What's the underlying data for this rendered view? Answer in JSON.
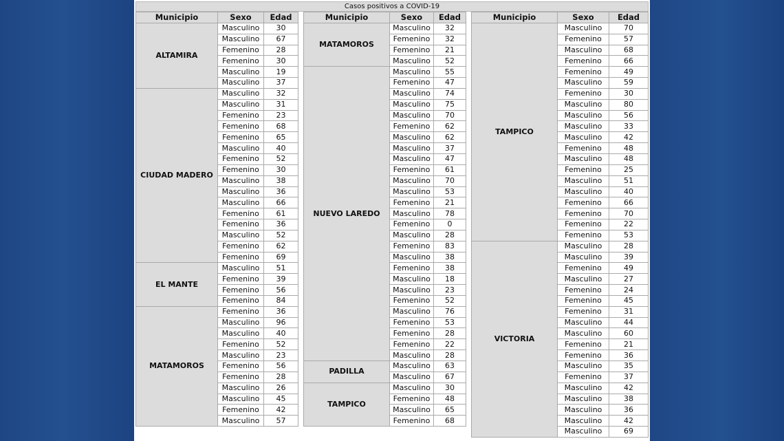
{
  "title": "Casos positivos a COVID-19",
  "headers": {
    "municipio": "Municipio",
    "sexo": "Sexo",
    "edad": "Edad"
  },
  "tables": [
    {
      "groups": [
        {
          "municipio": "ALTAMIRA",
          "rows": [
            [
              "Masculino",
              "30"
            ],
            [
              "Masculino",
              "67"
            ],
            [
              "Femenino",
              "28"
            ],
            [
              "Femenino",
              "30"
            ],
            [
              "Masculino",
              "19"
            ],
            [
              "Masculino",
              "37"
            ]
          ]
        },
        {
          "municipio": "CIUDAD MADERO",
          "rows": [
            [
              "Masculino",
              "32"
            ],
            [
              "Masculino",
              "31"
            ],
            [
              "Femenino",
              "23"
            ],
            [
              "Femenino",
              "68"
            ],
            [
              "Femenino",
              "65"
            ],
            [
              "Masculino",
              "40"
            ],
            [
              "Femenino",
              "52"
            ],
            [
              "Femenino",
              "30"
            ],
            [
              "Masculino",
              "38"
            ],
            [
              "Masculino",
              "36"
            ],
            [
              "Masculino",
              "66"
            ],
            [
              "Femenino",
              "61"
            ],
            [
              "Femenino",
              "36"
            ],
            [
              "Masculino",
              "52"
            ],
            [
              "Femenino",
              "62"
            ],
            [
              "Femenino",
              "69"
            ]
          ]
        },
        {
          "municipio": "EL MANTE",
          "rows": [
            [
              "Masculino",
              "51"
            ],
            [
              "Femenino",
              "39"
            ],
            [
              "Femenino",
              "56"
            ],
            [
              "Femenino",
              "84"
            ]
          ]
        },
        {
          "municipio": "MATAMOROS",
          "rows": [
            [
              "Femenino",
              "36"
            ],
            [
              "Masculino",
              "96"
            ],
            [
              "Masculino",
              "40"
            ],
            [
              "Femenino",
              "52"
            ],
            [
              "Masculino",
              "23"
            ],
            [
              "Femenino",
              "56"
            ],
            [
              "Femenino",
              "28"
            ],
            [
              "Masculino",
              "26"
            ],
            [
              "Masculino",
              "45"
            ],
            [
              "Femenino",
              "42"
            ],
            [
              "Masculino",
              "57"
            ]
          ]
        }
      ]
    },
    {
      "groups": [
        {
          "municipio": "MATAMOROS",
          "rows": [
            [
              "Masculino",
              "32"
            ],
            [
              "Femenino",
              "32"
            ],
            [
              "Femenino",
              "21"
            ],
            [
              "Masculino",
              "52"
            ]
          ]
        },
        {
          "municipio": "NUEVO LAREDO",
          "rows": [
            [
              "Masculino",
              "55"
            ],
            [
              "Femenino",
              "47"
            ],
            [
              "Masculino",
              "74"
            ],
            [
              "Masculino",
              "75"
            ],
            [
              "Masculino",
              "70"
            ],
            [
              "Femenino",
              "62"
            ],
            [
              "Masculino",
              "62"
            ],
            [
              "Masculino",
              "37"
            ],
            [
              "Masculino",
              "47"
            ],
            [
              "Femenino",
              "61"
            ],
            [
              "Masculino",
              "70"
            ],
            [
              "Masculino",
              "53"
            ],
            [
              "Femenino",
              "21"
            ],
            [
              "Masculino",
              "78"
            ],
            [
              "Femenino",
              "0"
            ],
            [
              "Masculino",
              "28"
            ],
            [
              "Femenino",
              "83"
            ],
            [
              "Masculino",
              "38"
            ],
            [
              "Femenino",
              "38"
            ],
            [
              "Masculino",
              "18"
            ],
            [
              "Masculino",
              "23"
            ],
            [
              "Femenino",
              "52"
            ],
            [
              "Masculino",
              "76"
            ],
            [
              "Femenino",
              "53"
            ],
            [
              "Femenino",
              "28"
            ],
            [
              "Femenino",
              "22"
            ],
            [
              "Masculino",
              "28"
            ]
          ]
        },
        {
          "municipio": "PADILLA",
          "rows": [
            [
              "Masculino",
              "63"
            ],
            [
              "Masculino",
              "67"
            ]
          ]
        },
        {
          "municipio": "TAMPICO",
          "rows": [
            [
              "Masculino",
              "30"
            ],
            [
              "Femenino",
              "48"
            ],
            [
              "Masculino",
              "65"
            ],
            [
              "Femenino",
              "68"
            ]
          ]
        }
      ]
    },
    {
      "groups": [
        {
          "municipio": "TAMPICO",
          "rows": [
            [
              "Masculino",
              "70"
            ],
            [
              "Femenino",
              "57"
            ],
            [
              "Masculino",
              "68"
            ],
            [
              "Femenino",
              "66"
            ],
            [
              "Femenino",
              "49"
            ],
            [
              "Masculino",
              "59"
            ],
            [
              "Femenino",
              "30"
            ],
            [
              "Masculino",
              "80"
            ],
            [
              "Masculino",
              "56"
            ],
            [
              "Masculino",
              "33"
            ],
            [
              "Masculino",
              "42"
            ],
            [
              "Femenino",
              "48"
            ],
            [
              "Masculino",
              "48"
            ],
            [
              "Femenino",
              "25"
            ],
            [
              "Masculino",
              "51"
            ],
            [
              "Masculino",
              "40"
            ],
            [
              "Femenino",
              "66"
            ],
            [
              "Femenino",
              "70"
            ],
            [
              "Femenino",
              "22"
            ],
            [
              "Femenino",
              "53"
            ]
          ]
        },
        {
          "municipio": "VICTORIA",
          "rows": [
            [
              "Masculino",
              "28"
            ],
            [
              "Masculino",
              "39"
            ],
            [
              "Femenino",
              "49"
            ],
            [
              "Masculino",
              "27"
            ],
            [
              "Femenino",
              "24"
            ],
            [
              "Femenino",
              "45"
            ],
            [
              "Femenino",
              "31"
            ],
            [
              "Masculino",
              "44"
            ],
            [
              "Masculino",
              "60"
            ],
            [
              "Femenino",
              "21"
            ],
            [
              "Femenino",
              "36"
            ],
            [
              "Masculino",
              "35"
            ],
            [
              "Femenino",
              "37"
            ],
            [
              "Masculino",
              "42"
            ],
            [
              "Masculino",
              "38"
            ],
            [
              "Masculino",
              "36"
            ],
            [
              "Masculino",
              "42"
            ],
            [
              "Masculino",
              "69"
            ]
          ]
        }
      ]
    }
  ]
}
